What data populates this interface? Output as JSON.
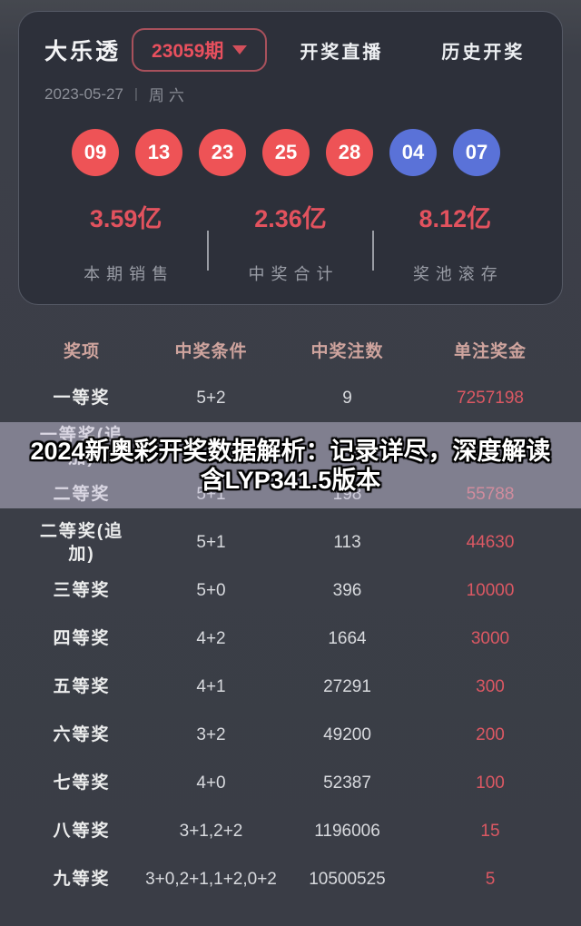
{
  "header": {
    "title": "大乐透",
    "issue": "23059期",
    "dropdown_icon": "chevron-down-icon",
    "nav_live": "开奖直播",
    "nav_history": "历史开奖",
    "date": "2023-05-27",
    "date_separator": "|",
    "weekday": "周六"
  },
  "balls": {
    "front": [
      "09",
      "13",
      "23",
      "25",
      "28"
    ],
    "back": [
      "04",
      "07"
    ]
  },
  "stats": [
    {
      "value": "3.59亿",
      "label": "本期销售"
    },
    {
      "value": "2.36亿",
      "label": "中奖合计"
    },
    {
      "value": "8.12亿",
      "label": "奖池滚存"
    }
  ],
  "table": {
    "columns": [
      "奖项",
      "中奖条件",
      "中奖注数",
      "单注奖金"
    ],
    "rows": [
      {
        "prize": "一等奖",
        "condition": "5+2",
        "count": "9",
        "amount": "7257198"
      },
      {
        "prize": "一等奖(追加)",
        "condition": "",
        "count": "",
        "amount": ""
      },
      {
        "prize": "二等奖",
        "condition": "5+1",
        "count": "198",
        "amount": "55788"
      },
      {
        "prize": "二等奖(追加)",
        "condition": "5+1",
        "count": "113",
        "amount": "44630"
      },
      {
        "prize": "三等奖",
        "condition": "5+0",
        "count": "396",
        "amount": "10000"
      },
      {
        "prize": "四等奖",
        "condition": "4+2",
        "count": "1664",
        "amount": "3000"
      },
      {
        "prize": "五等奖",
        "condition": "4+1",
        "count": "27291",
        "amount": "300"
      },
      {
        "prize": "六等奖",
        "condition": "3+2",
        "count": "49200",
        "amount": "200"
      },
      {
        "prize": "七等奖",
        "condition": "4+0",
        "count": "52387",
        "amount": "100"
      },
      {
        "prize": "八等奖",
        "condition": "3+1,2+2",
        "count": "1196006",
        "amount": "15"
      },
      {
        "prize": "九等奖",
        "condition": "3+0,2+1,1+2,0+2",
        "count": "10500525",
        "amount": "5"
      }
    ]
  },
  "overlay": {
    "line1": "2024新奥彩开奖数据解析：记录详尽，深度解读",
    "line2": "含LYP341.5版本"
  },
  "colors": {
    "accent_red": "#e8505e",
    "ball_red": "#ee5356",
    "ball_blue": "#5a72d8",
    "table_header_pink": "#cfa49e",
    "amount_red": "#db5863",
    "card_bg": "#2d303a",
    "page_bg": "#3a3d46"
  }
}
